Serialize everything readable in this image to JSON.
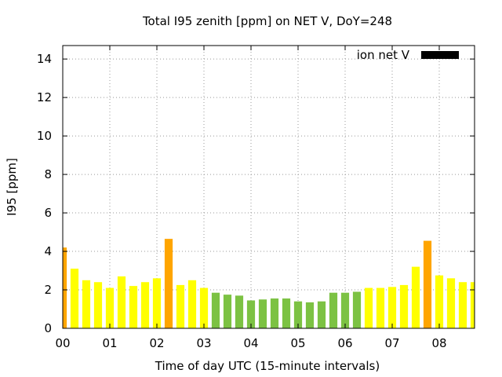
{
  "chart_data": {
    "type": "bar",
    "title": "Total I95 zenith [ppm] on NET V, DoY=248",
    "xlabel": "Time of day UTC (15-minute intervals)",
    "ylabel": "I95 [ppm]",
    "ylim": [
      0,
      14.7
    ],
    "yticks": [
      0,
      2,
      4,
      6,
      8,
      10,
      12,
      14
    ],
    "xlim_hours": [
      0,
      8.75
    ],
    "xticks": [
      "00",
      "01",
      "02",
      "03",
      "04",
      "05",
      "06",
      "07",
      "08"
    ],
    "grid": true,
    "legend": {
      "label": "ion net V",
      "position": "top-right",
      "color": "#000000"
    },
    "interval_minutes": 15,
    "colors": {
      "high": "#ffa500",
      "mid": "#ffff00",
      "low": "#7cc243"
    },
    "values": [
      4.2,
      3.1,
      2.5,
      2.4,
      2.1,
      2.7,
      2.2,
      2.4,
      2.6,
      4.65,
      2.25,
      2.5,
      2.1,
      1.85,
      1.75,
      1.7,
      1.45,
      1.5,
      1.55,
      1.55,
      1.4,
      1.35,
      1.4,
      1.85,
      1.85,
      1.9,
      2.1,
      2.1,
      2.15,
      2.25,
      3.2,
      4.55,
      2.75,
      2.6,
      2.4,
      2.4
    ],
    "levels": [
      "high",
      "mid",
      "mid",
      "mid",
      "mid",
      "mid",
      "mid",
      "mid",
      "mid",
      "high",
      "mid",
      "mid",
      "mid",
      "low",
      "low",
      "low",
      "low",
      "low",
      "low",
      "low",
      "low",
      "low",
      "low",
      "low",
      "low",
      "low",
      "mid",
      "mid",
      "mid",
      "mid",
      "mid",
      "high",
      "mid",
      "mid",
      "mid",
      "mid"
    ]
  }
}
